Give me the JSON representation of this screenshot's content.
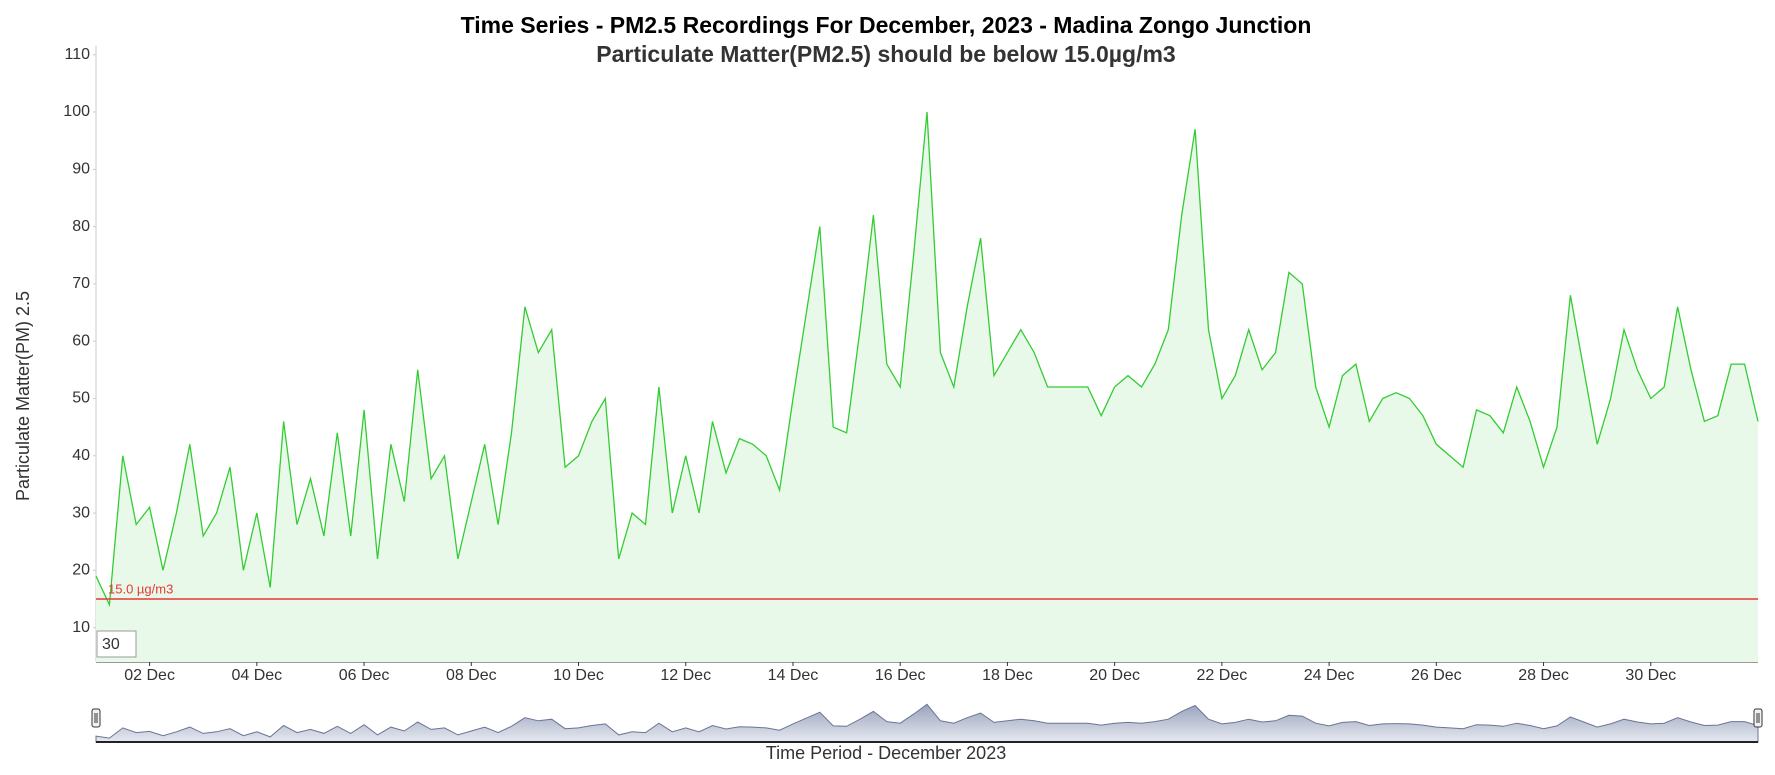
{
  "range_input": "30",
  "chart_data": {
    "type": "area",
    "title": "Time Series - PM2.5 Recordings For December, 2023 - Madina Zongo Junction",
    "subtitle": "Particulate Matter(PM2.5) should be below 15.0µg/m3",
    "subtitle_color": "#ff0000",
    "xlabel": "Time Period - December 2023",
    "ylabel": "Particulate Matter(PM) 2.5",
    "color": "#33cc33",
    "fill": "#e9f9e9",
    "threshold": {
      "value": 15,
      "label": "15.0 µg/m3",
      "color": "#e53935"
    },
    "x": [
      1,
      1.25,
      1.5,
      1.75,
      2,
      2.25,
      2.5,
      2.75,
      3,
      3.25,
      3.5,
      3.75,
      4,
      4.25,
      4.5,
      4.75,
      5,
      5.25,
      5.5,
      5.75,
      6,
      6.25,
      6.5,
      6.75,
      7,
      7.25,
      7.5,
      7.75,
      8,
      8.25,
      8.5,
      8.75,
      9,
      9.25,
      9.5,
      9.75,
      10,
      10.25,
      10.5,
      10.75,
      11,
      11.25,
      11.5,
      11.75,
      12,
      12.25,
      12.5,
      12.75,
      13,
      13.25,
      13.5,
      13.75,
      14,
      14.25,
      14.5,
      14.75,
      15,
      15.25,
      15.5,
      15.75,
      16,
      16.25,
      16.5,
      16.75,
      17,
      17.25,
      17.5,
      17.75,
      18,
      18.25,
      18.5,
      18.75,
      19,
      19.25,
      19.5,
      19.75,
      20,
      20.25,
      20.5,
      20.75,
      21,
      21.25,
      21.5,
      21.75,
      22,
      22.25,
      22.5,
      22.75,
      23,
      23.25,
      23.5,
      23.75,
      24,
      24.25,
      24.5,
      24.75,
      25,
      25.25,
      25.5,
      25.75,
      26,
      26.25,
      26.5,
      26.75,
      27,
      27.25,
      27.5,
      27.75,
      28,
      28.25,
      28.5,
      28.75,
      29,
      29.25,
      29.5,
      29.75,
      30,
      30.25,
      30.5,
      30.75,
      31,
      31.25,
      31.5,
      31.75,
      32
    ],
    "values": [
      19,
      14,
      40,
      28,
      31,
      20,
      30,
      42,
      26,
      30,
      38,
      20,
      30,
      17,
      46,
      28,
      36,
      26,
      44,
      26,
      48,
      22,
      42,
      32,
      55,
      36,
      40,
      22,
      32,
      42,
      28,
      44,
      66,
      58,
      62,
      38,
      40,
      46,
      50,
      22,
      30,
      28,
      52,
      30,
      40,
      30,
      46,
      37,
      43,
      42,
      40,
      34,
      50,
      65,
      80,
      45,
      44,
      62,
      82,
      56,
      52,
      75,
      100,
      58,
      52,
      66,
      78,
      54,
      58,
      62,
      58,
      52,
      52,
      52,
      52,
      47,
      52,
      54,
      52,
      56,
      62,
      82,
      97,
      62,
      50,
      54,
      62,
      55,
      58,
      72,
      70,
      52,
      45,
      54,
      56,
      46,
      50,
      51,
      50,
      47,
      42,
      40,
      38,
      48,
      47,
      44,
      52,
      46,
      38,
      45,
      68,
      55,
      42,
      50,
      62,
      55,
      50,
      52,
      66,
      55,
      46,
      47,
      56,
      56,
      46
    ],
    "xlim": [
      1,
      32
    ],
    "xticks": [
      {
        "value": 2,
        "label": "02 Dec"
      },
      {
        "value": 4,
        "label": "04 Dec"
      },
      {
        "value": 6,
        "label": "06 Dec"
      },
      {
        "value": 8,
        "label": "08 Dec"
      },
      {
        "value": 10,
        "label": "10 Dec"
      },
      {
        "value": 12,
        "label": "12 Dec"
      },
      {
        "value": 14,
        "label": "14 Dec"
      },
      {
        "value": 16,
        "label": "16 Dec"
      },
      {
        "value": 18,
        "label": "18 Dec"
      },
      {
        "value": 20,
        "label": "20 Dec"
      },
      {
        "value": 22,
        "label": "22 Dec"
      },
      {
        "value": 24,
        "label": "24 Dec"
      },
      {
        "value": 26,
        "label": "26 Dec"
      },
      {
        "value": 28,
        "label": "28 Dec"
      },
      {
        "value": 30,
        "label": "30 Dec"
      }
    ],
    "ylim": [
      4,
      111
    ],
    "yticks": [
      10,
      20,
      30,
      40,
      50,
      60,
      70,
      80,
      90,
      100,
      110
    ],
    "navigator": true
  }
}
